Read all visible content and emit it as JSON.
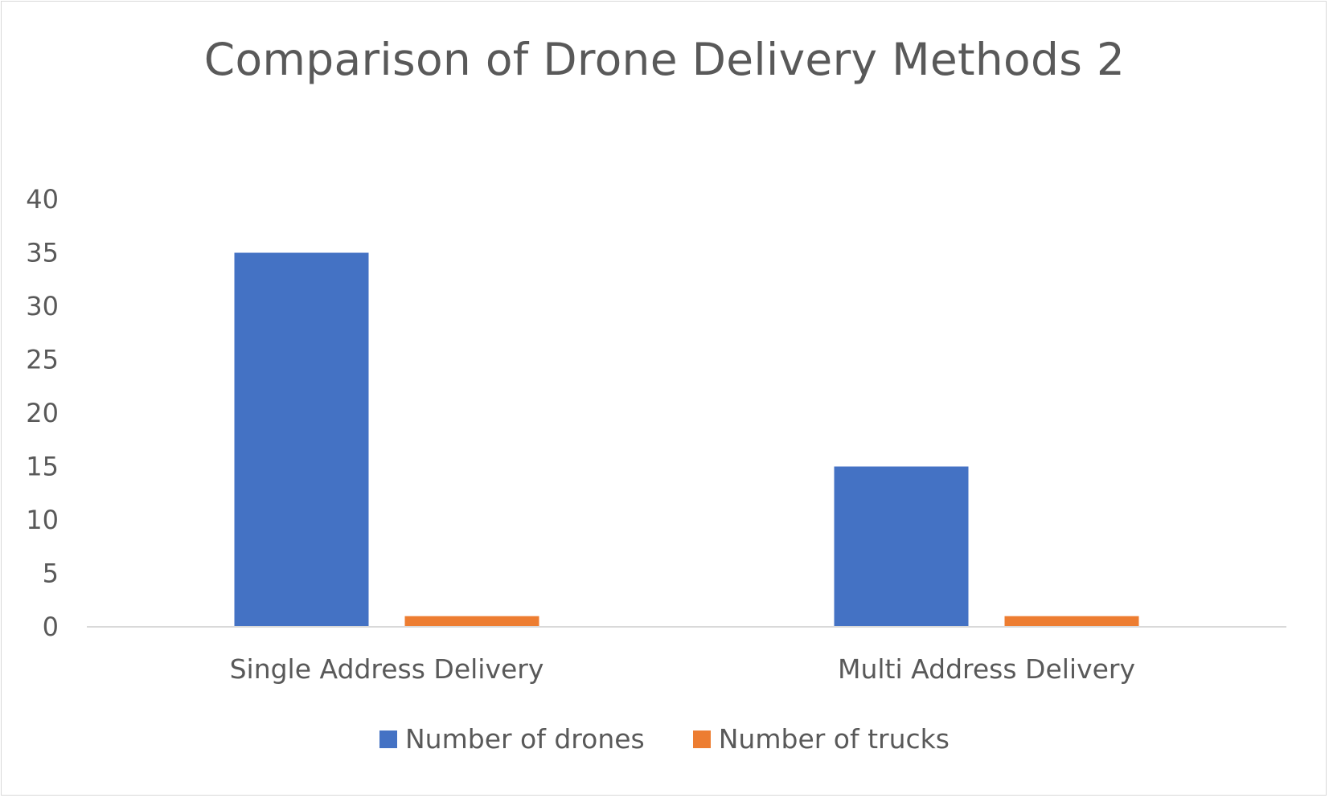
{
  "chart_data": {
    "type": "bar",
    "title": "Comparison of Drone Delivery Methods 2",
    "categories": [
      "Single Address Delivery",
      "Multi Address Delivery"
    ],
    "series": [
      {
        "name": "Number of drones",
        "values": [
          35,
          15
        ],
        "color": "#4472C4"
      },
      {
        "name": "Number of trucks",
        "values": [
          1,
          1
        ],
        "color": "#ED7D31"
      }
    ],
    "ylim": [
      0,
      40
    ],
    "yticks": [
      "0",
      "5",
      "10",
      "15",
      "20",
      "25",
      "30",
      "35",
      "40"
    ],
    "grid": false,
    "legend": "bottom",
    "xlabel": "",
    "ylabel": ""
  }
}
